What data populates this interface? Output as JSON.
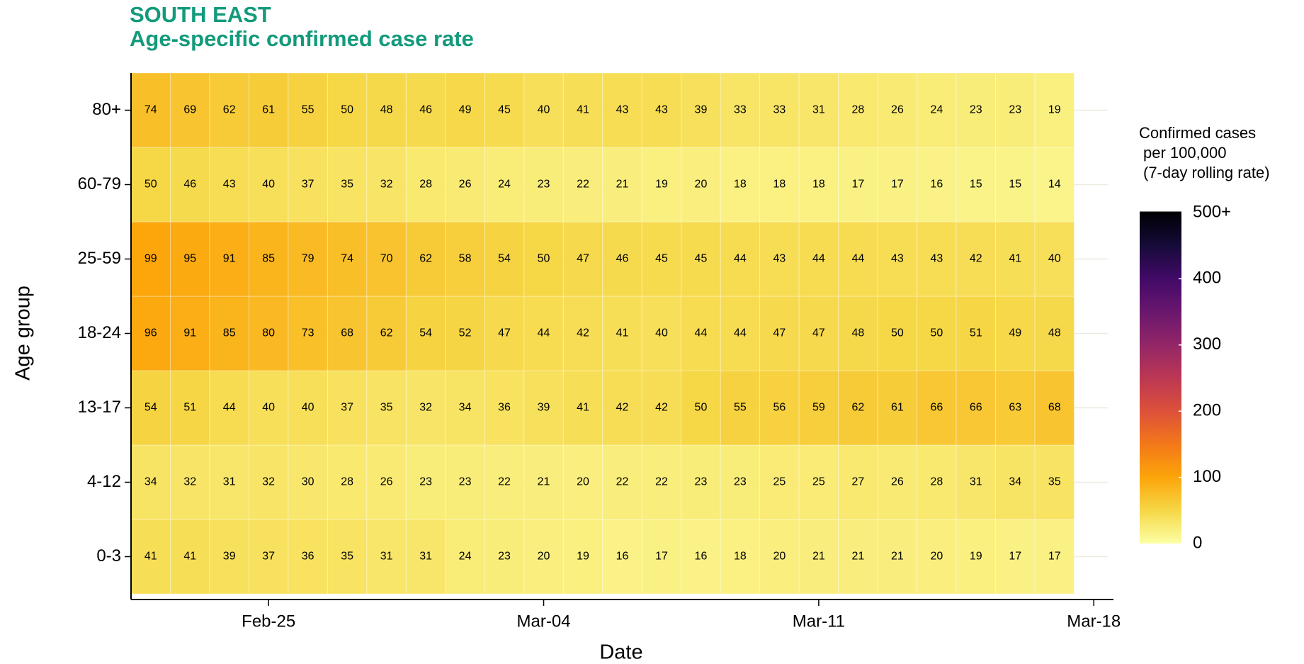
{
  "chart_data": {
    "type": "heatmap",
    "title": [
      "SOUTH EAST",
      "Age-specific confirmed case rate"
    ],
    "xlabel": "Date",
    "ylabel": "Age group",
    "x": [
      0,
      1,
      2,
      3,
      4,
      5,
      6,
      7,
      8,
      9,
      10,
      11,
      12,
      13,
      14,
      15,
      16,
      17,
      18,
      19,
      20,
      21,
      22,
      23
    ],
    "xlim": [
      -0.5,
      24.5
    ],
    "xticks": [
      {
        "value": 3,
        "label": "Feb-25"
      },
      {
        "value": 10,
        "label": "Mar-04"
      },
      {
        "value": 17,
        "label": "Mar-11"
      },
      {
        "value": 24,
        "label": "Mar-18"
      }
    ],
    "categories": [
      "0-3",
      "4-12",
      "13-17",
      "18-24",
      "25-59",
      "60-79",
      "80+"
    ],
    "values": [
      [
        41,
        41,
        39,
        37,
        36,
        35,
        31,
        31,
        24,
        23,
        20,
        19,
        16,
        17,
        16,
        18,
        20,
        21,
        21,
        21,
        20,
        19,
        17,
        17
      ],
      [
        34,
        32,
        31,
        32,
        30,
        28,
        26,
        23,
        23,
        22,
        21,
        20,
        22,
        22,
        23,
        23,
        25,
        25,
        27,
        26,
        28,
        31,
        34,
        35
      ],
      [
        54,
        51,
        44,
        40,
        40,
        37,
        35,
        32,
        34,
        36,
        39,
        41,
        42,
        42,
        50,
        55,
        56,
        59,
        62,
        61,
        66,
        66,
        63,
        68
      ],
      [
        96,
        91,
        85,
        80,
        73,
        68,
        62,
        54,
        52,
        47,
        44,
        42,
        41,
        40,
        44,
        44,
        47,
        47,
        48,
        50,
        50,
        51,
        49,
        48
      ],
      [
        99,
        95,
        91,
        85,
        79,
        74,
        70,
        62,
        58,
        54,
        50,
        47,
        46,
        45,
        45,
        44,
        43,
        44,
        44,
        43,
        43,
        42,
        41,
        40
      ],
      [
        50,
        46,
        43,
        40,
        37,
        35,
        32,
        28,
        26,
        24,
        23,
        22,
        21,
        19,
        20,
        18,
        18,
        18,
        17,
        17,
        16,
        15,
        15,
        14
      ],
      [
        74,
        69,
        62,
        61,
        55,
        50,
        48,
        46,
        49,
        45,
        40,
        41,
        43,
        43,
        39,
        33,
        33,
        31,
        28,
        26,
        24,
        23,
        23,
        19
      ]
    ],
    "legend_title": [
      "Confirmed cases",
      "per 100,000",
      "(7-day rolling rate)"
    ],
    "clim": [
      0,
      500
    ],
    "cticks": [
      0,
      100,
      200,
      300,
      400,
      {
        "value": 500,
        "label": "500+"
      }
    ],
    "colorscale": [
      "#fcffa4",
      "#f6d746",
      "#fca50a",
      "#f37819",
      "#dd513a",
      "#bc3754",
      "#932667",
      "#6a176e",
      "#420a68",
      "#160b39",
      "#000004"
    ],
    "title_color": "#139a7b"
  }
}
